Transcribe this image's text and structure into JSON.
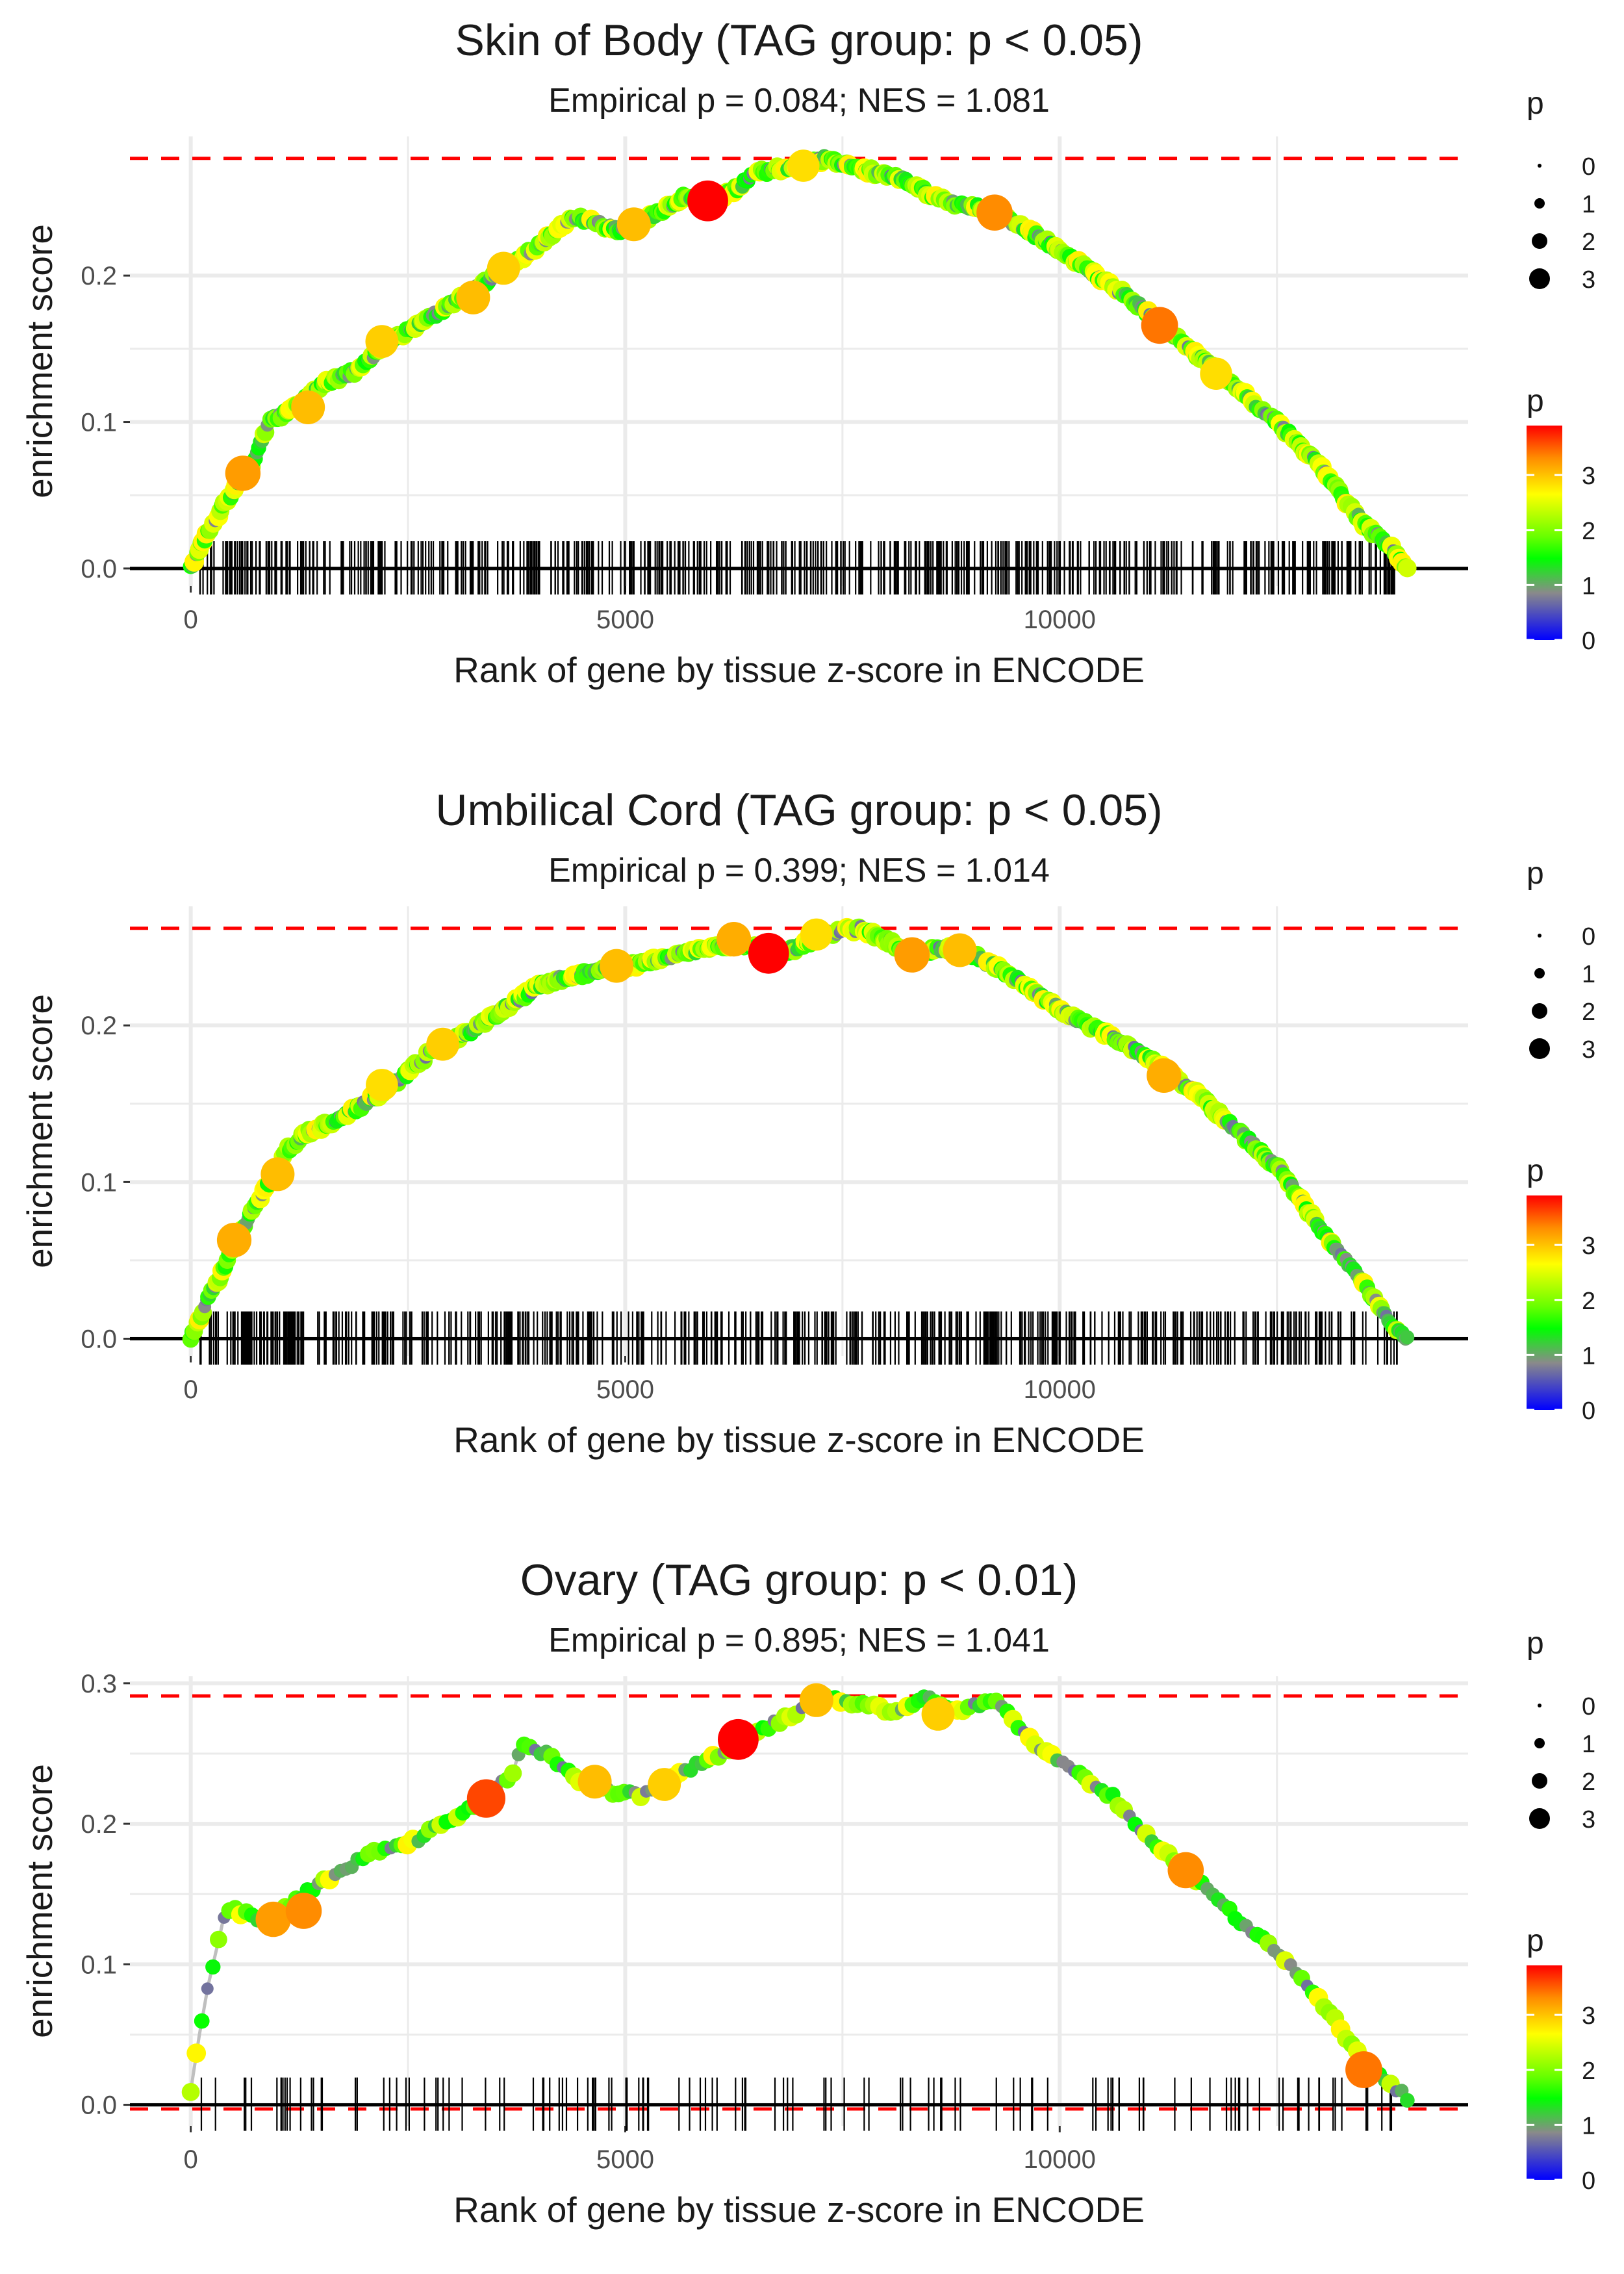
{
  "chart_data": [
    {
      "type": "scatter",
      "title": "Skin of Body (TAG group: p < 0.05)",
      "subtitle": "Empirical p = 0.084; NES = 1.081",
      "xlabel": "Rank of gene by tissue z-score in ENCODE",
      "ylabel": "enrichment score",
      "xlim": [
        -700,
        14700
      ],
      "ylim": [
        -0.012,
        0.295
      ],
      "xticks": [
        0,
        5000,
        10000
      ],
      "xtick_labels": [
        "0",
        "5000",
        "10000"
      ],
      "yticks": [
        0.0,
        0.1,
        0.2
      ],
      "ytick_labels": [
        "0.0",
        "0.1",
        "0.2"
      ],
      "max_es": 0.28,
      "min_es": 0.0,
      "point_density": "dense",
      "seed": 11,
      "curve": [
        [
          0,
          0
        ],
        [
          150,
          0.02
        ],
        [
          400,
          0.045
        ],
        [
          700,
          0.07
        ],
        [
          900,
          0.1
        ],
        [
          1200,
          0.11
        ],
        [
          1500,
          0.125
        ],
        [
          1900,
          0.135
        ],
        [
          2300,
          0.155
        ],
        [
          2700,
          0.17
        ],
        [
          3000,
          0.18
        ],
        [
          3500,
          0.2
        ],
        [
          4000,
          0.22
        ],
        [
          4400,
          0.24
        ],
        [
          4700,
          0.235
        ],
        [
          5000,
          0.23
        ],
        [
          5300,
          0.24
        ],
        [
          5700,
          0.255
        ],
        [
          6000,
          0.25
        ],
        [
          6300,
          0.26
        ],
        [
          6500,
          0.27
        ],
        [
          7000,
          0.275
        ],
        [
          7300,
          0.28
        ],
        [
          7800,
          0.272
        ],
        [
          8200,
          0.265
        ],
        [
          8700,
          0.25
        ],
        [
          9200,
          0.245
        ],
        [
          9800,
          0.225
        ],
        [
          10300,
          0.205
        ],
        [
          10800,
          0.185
        ],
        [
          11200,
          0.165
        ],
        [
          11600,
          0.145
        ],
        [
          12000,
          0.125
        ],
        [
          12500,
          0.1
        ],
        [
          13000,
          0.07
        ],
        [
          13500,
          0.03
        ],
        [
          13800,
          0.015
        ],
        [
          14000,
          0
        ]
      ],
      "highlights": [
        [
          600,
          0.065,
          3.2
        ],
        [
          1350,
          0.11,
          3.0
        ],
        [
          2200,
          0.155,
          2.9
        ],
        [
          3250,
          0.185,
          3.0
        ],
        [
          3600,
          0.205,
          2.9
        ],
        [
          5100,
          0.235,
          3.0
        ],
        [
          5950,
          0.251,
          3.9
        ],
        [
          7050,
          0.275,
          2.8
        ],
        [
          9250,
          0.243,
          3.3
        ],
        [
          11150,
          0.166,
          3.4
        ],
        [
          11800,
          0.133,
          2.8
        ]
      ],
      "legend_size": {
        "title": "p",
        "labels": [
          "0",
          "1",
          "2",
          "3"
        ]
      },
      "legend_color": {
        "title": "p",
        "labels": [
          "3",
          "2",
          "1",
          "0"
        ]
      }
    },
    {
      "type": "scatter",
      "title": "Umbilical Cord (TAG group: p < 0.05)",
      "subtitle": "Empirical p = 0.399; NES = 1.014",
      "xlabel": "Rank of gene by tissue z-score in ENCODE",
      "ylabel": "enrichment score",
      "xlim": [
        -700,
        14700
      ],
      "ylim": [
        -0.011,
        0.276
      ],
      "xticks": [
        0,
        5000,
        10000
      ],
      "xtick_labels": [
        "0",
        "5000",
        "10000"
      ],
      "yticks": [
        0.0,
        0.1,
        0.2
      ],
      "ytick_labels": [
        "0.0",
        "0.1",
        "0.2"
      ],
      "max_es": 0.262,
      "min_es": 0.0,
      "point_density": "dense",
      "seed": 23,
      "curve": [
        [
          0,
          0
        ],
        [
          150,
          0.02
        ],
        [
          300,
          0.035
        ],
        [
          500,
          0.06
        ],
        [
          700,
          0.08
        ],
        [
          900,
          0.1
        ],
        [
          1100,
          0.12
        ],
        [
          1300,
          0.13
        ],
        [
          1700,
          0.14
        ],
        [
          2000,
          0.15
        ],
        [
          2400,
          0.165
        ],
        [
          2800,
          0.185
        ],
        [
          3200,
          0.195
        ],
        [
          3600,
          0.21
        ],
        [
          4000,
          0.225
        ],
        [
          4400,
          0.232
        ],
        [
          4800,
          0.235
        ],
        [
          5200,
          0.24
        ],
        [
          5600,
          0.245
        ],
        [
          6000,
          0.25
        ],
        [
          6400,
          0.252
        ],
        [
          6700,
          0.245
        ],
        [
          7000,
          0.25
        ],
        [
          7300,
          0.258
        ],
        [
          7700,
          0.262
        ],
        [
          8000,
          0.255
        ],
        [
          8300,
          0.245
        ],
        [
          8700,
          0.25
        ],
        [
          9000,
          0.245
        ],
        [
          9500,
          0.23
        ],
        [
          10000,
          0.21
        ],
        [
          10500,
          0.195
        ],
        [
          11000,
          0.18
        ],
        [
          11500,
          0.16
        ],
        [
          12000,
          0.135
        ],
        [
          12500,
          0.11
        ],
        [
          13000,
          0.07
        ],
        [
          13500,
          0.035
        ],
        [
          13800,
          0.01
        ],
        [
          14000,
          0
        ]
      ],
      "highlights": [
        [
          500,
          0.063,
          3.1
        ],
        [
          1000,
          0.105,
          3.0
        ],
        [
          2200,
          0.162,
          2.8
        ],
        [
          2900,
          0.188,
          2.9
        ],
        [
          4900,
          0.238,
          3.0
        ],
        [
          6250,
          0.255,
          3.1
        ],
        [
          6650,
          0.246,
          3.9
        ],
        [
          7200,
          0.258,
          2.8
        ],
        [
          8300,
          0.245,
          3.2
        ],
        [
          8850,
          0.248,
          3.0
        ],
        [
          11200,
          0.168,
          3.1
        ]
      ],
      "legend_size": {
        "title": "p",
        "labels": [
          "0",
          "1",
          "2",
          "3"
        ]
      },
      "legend_color": {
        "title": "p",
        "labels": [
          "3",
          "2",
          "1",
          "0"
        ]
      }
    },
    {
      "type": "scatter",
      "title": "Ovary (TAG group: p < 0.01)",
      "subtitle": "Empirical p = 0.895; NES = 1.041",
      "xlabel": "Rank of gene by tissue z-score in ENCODE",
      "ylabel": "enrichment score",
      "xlim": [
        -700,
        14700
      ],
      "ylim": [
        -0.015,
        0.305
      ],
      "xticks": [
        0,
        5000,
        10000
      ],
      "xtick_labels": [
        "0",
        "5000",
        "10000"
      ],
      "yticks": [
        0.0,
        0.1,
        0.2,
        0.3
      ],
      "ytick_labels": [
        "0.0",
        "0.1",
        "0.2",
        "0.3"
      ],
      "max_es": 0.291,
      "min_es": -0.003,
      "point_density": "sparse",
      "seed": 37,
      "curve": [
        [
          0,
          0.01
        ],
        [
          100,
          0.05
        ],
        [
          200,
          0.085
        ],
        [
          350,
          0.125
        ],
        [
          400,
          0.14
        ],
        [
          700,
          0.135
        ],
        [
          900,
          0.13
        ],
        [
          1300,
          0.15
        ],
        [
          1700,
          0.165
        ],
        [
          2100,
          0.18
        ],
        [
          2500,
          0.185
        ],
        [
          2900,
          0.2
        ],
        [
          3300,
          0.215
        ],
        [
          3700,
          0.235
        ],
        [
          3800,
          0.255
        ],
        [
          4100,
          0.25
        ],
        [
          4600,
          0.225
        ],
        [
          5200,
          0.22
        ],
        [
          5600,
          0.235
        ],
        [
          6100,
          0.25
        ],
        [
          6500,
          0.265
        ],
        [
          7000,
          0.28
        ],
        [
          7300,
          0.29
        ],
        [
          7700,
          0.285
        ],
        [
          8100,
          0.28
        ],
        [
          8500,
          0.29
        ],
        [
          8800,
          0.28
        ],
        [
          9200,
          0.287
        ],
        [
          9300,
          0.285
        ],
        [
          9700,
          0.257
        ],
        [
          10100,
          0.24
        ],
        [
          10600,
          0.22
        ],
        [
          11100,
          0.185
        ],
        [
          11500,
          0.165
        ],
        [
          12000,
          0.135
        ],
        [
          12500,
          0.11
        ],
        [
          13000,
          0.075
        ],
        [
          13500,
          0.03
        ],
        [
          14000,
          0.005
        ]
      ],
      "highlights": [
        [
          950,
          0.132,
          3.2
        ],
        [
          1300,
          0.138,
          3.3
        ],
        [
          3400,
          0.218,
          3.6
        ],
        [
          4650,
          0.23,
          3.0
        ],
        [
          5450,
          0.228,
          2.9
        ],
        [
          6300,
          0.26,
          3.9
        ],
        [
          7200,
          0.288,
          3.0
        ],
        [
          8600,
          0.278,
          2.9
        ],
        [
          11450,
          0.167,
          3.3
        ],
        [
          13500,
          0.025,
          3.4
        ]
      ],
      "legend_size": {
        "title": "p",
        "labels": [
          "0",
          "1",
          "2",
          "3"
        ]
      },
      "legend_color": {
        "title": "p",
        "labels": [
          "3",
          "2",
          "1",
          "0"
        ]
      }
    }
  ],
  "colors": {
    "gradient": [
      "#ff0000",
      "#ff8c00",
      "#ffff00",
      "#66ff00",
      "#00ff00",
      "#8a8a8a",
      "#0000ff"
    ],
    "threshold_line": "#ff0000",
    "zero_line": "#000000",
    "running_line": "#bfbfbf",
    "grid": "#ebebeb"
  }
}
